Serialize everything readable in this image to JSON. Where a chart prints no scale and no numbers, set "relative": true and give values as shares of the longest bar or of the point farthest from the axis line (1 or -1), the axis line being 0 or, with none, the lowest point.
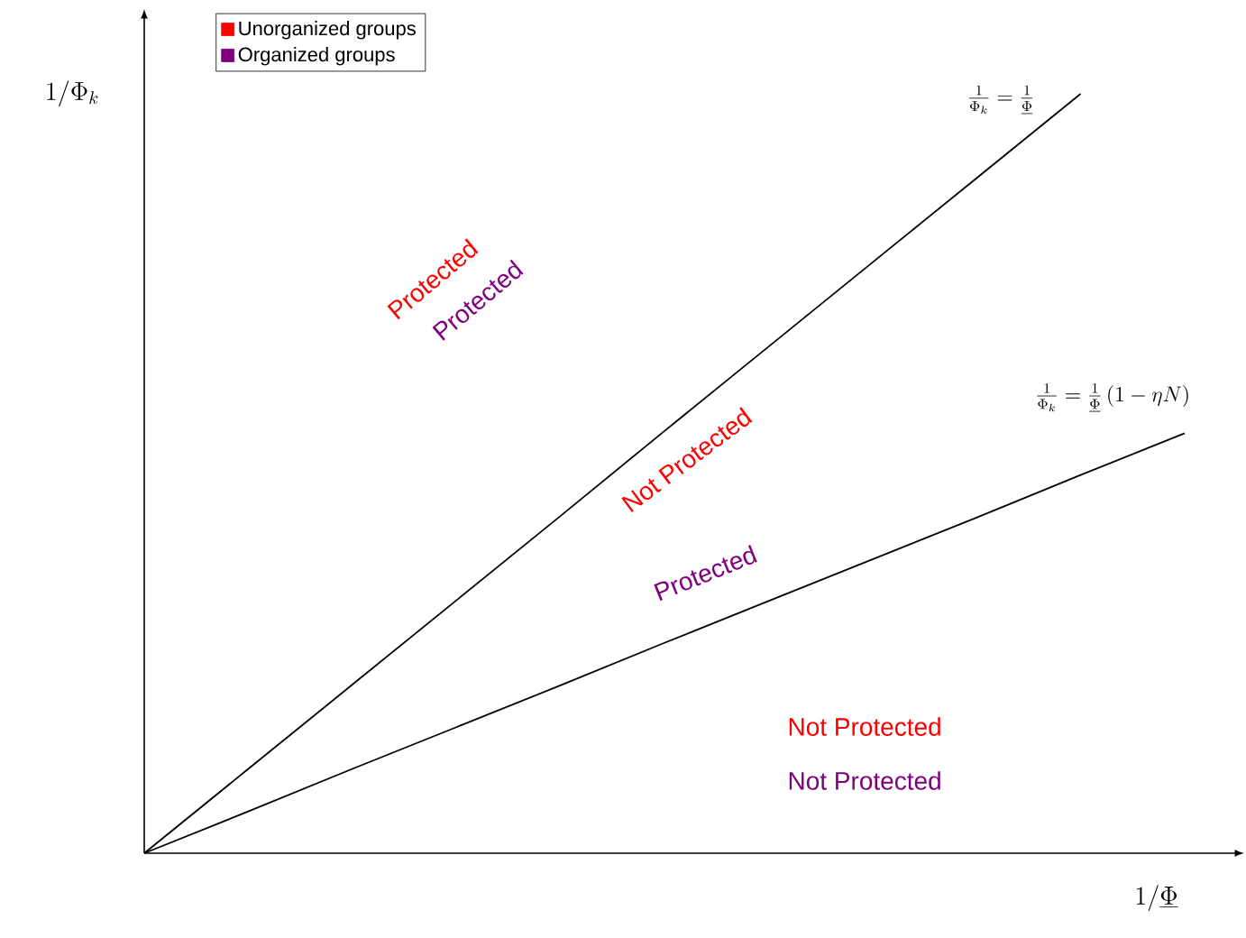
{
  "chart_data": {
    "type": "line",
    "relative": true,
    "xlabel": "1/\\underline{\\Phi}",
    "ylabel": "1/\\Phi_k",
    "legend": "top left",
    "line_style": "solid",
    "marker": "none",
    "categories": [
      null,
      null,
      null,
      null,
      null,
      null,
      null,
      null,
      null,
      null,
      null
    ],
    "series": [
      {
        "name": "\\frac{1}{\\Phi_k}=\\frac{1}{\\underline{\\Phi}}",
        "color": "#000000",
        "values": [
          0,
          0.111,
          0.222,
          0.333,
          0.444,
          0.556,
          0.667,
          0.778,
          0.889,
          1,
          null
        ]
      },
      {
        "name": "\\frac{1}{\\Phi_k}=\\frac{1}{\\underline{\\Phi}}\\left(1-\\eta N\\right)",
        "color": "#000000",
        "values": [
          0,
          0.055,
          0.111,
          0.166,
          0.221,
          0.277,
          0.332,
          0.387,
          0.442,
          0.498,
          0.553
        ]
      },
      {
        "name": "Unorganized groups",
        "color": "#ff0000",
        "values": [
          null,
          null,
          null,
          null,
          null,
          null,
          null,
          null,
          null,
          null,
          null
        ]
      },
      {
        "name": "Organized groups",
        "color": "#800080",
        "values": [
          null,
          null,
          null,
          null,
          null,
          null,
          null,
          null,
          null,
          null,
          null
        ]
      }
    ],
    "annotations": [
      "Protected",
      "Protected",
      "Not Protected",
      "Protected",
      "Not Protected",
      "Not Protected"
    ]
  }
}
